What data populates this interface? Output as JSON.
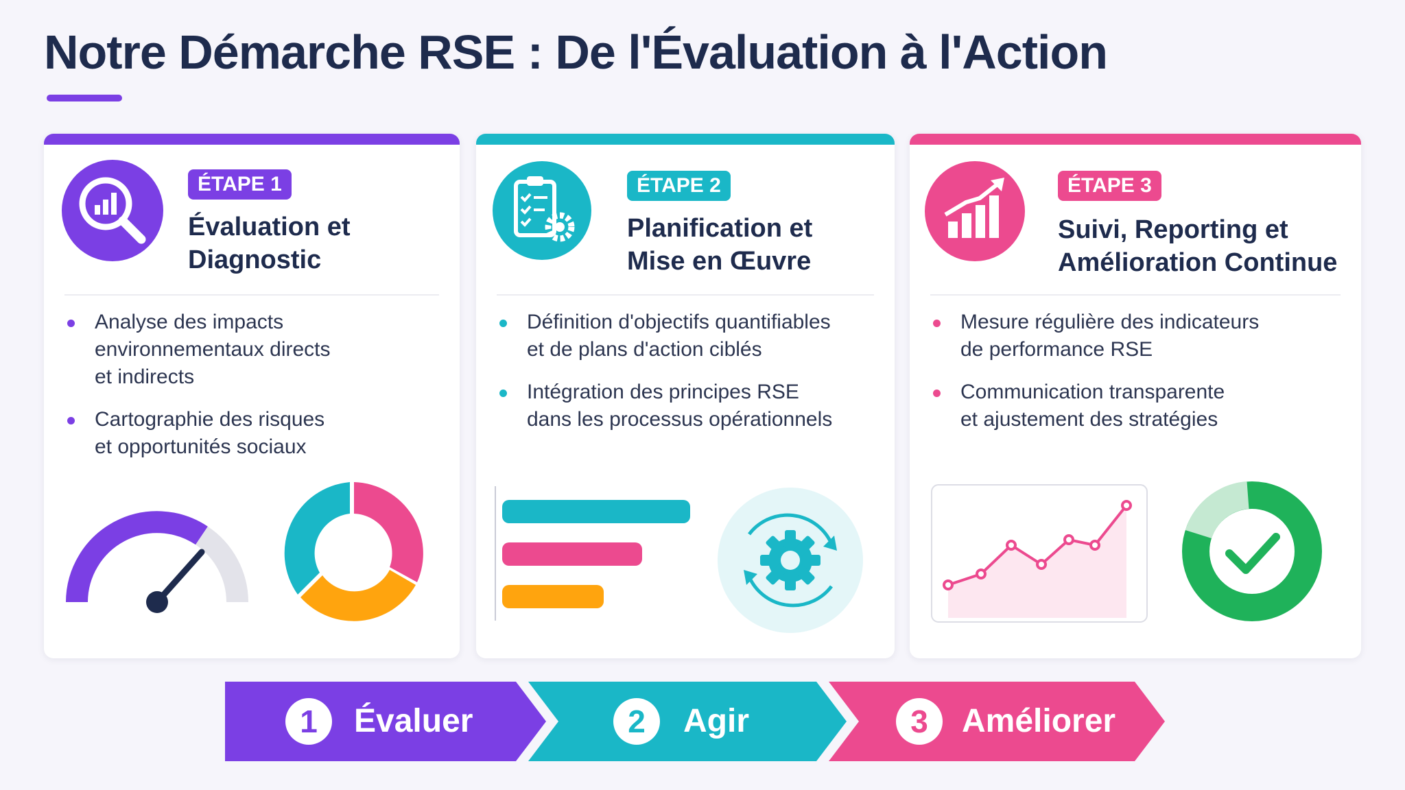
{
  "title": "Notre Démarche RSE : De l'Évaluation à l'Action",
  "colors": {
    "purple": "#7b3fe4",
    "teal": "#1ab7c7",
    "pink": "#ec4a8f",
    "orange": "#ffa40e",
    "green": "#1fb25a",
    "navy": "#1e2b4d"
  },
  "cards": [
    {
      "badge": "ÉTAPE 1",
      "heading_line1": "Évaluation et",
      "heading_line2": "Diagnostic",
      "icon": "magnifier-chart-icon",
      "bullets": [
        "Analyse des impacts\nenvironnementaux directs\net indirects",
        "Cartographie des risques\net opportunités sociaux"
      ],
      "visuals": [
        "gauge-icon",
        "donut-chart-icon"
      ]
    },
    {
      "badge": "ÉTAPE 2",
      "heading_line1": "Planification et",
      "heading_line2": "Mise en Œuvre",
      "icon": "clipboard-gear-icon",
      "bullets": [
        "Définition d'objectifs quantifiables\net de plans d'action ciblés",
        "Intégration des principes RSE\ndans les processus opérationnels"
      ],
      "visuals": [
        "bar-chart-icon",
        "gear-cycle-icon"
      ]
    },
    {
      "badge": "ÉTAPE 3",
      "heading_line1": "Suivi, Reporting et",
      "heading_line2": "Amélioration Continue",
      "icon": "growth-chart-icon",
      "bullets": [
        "Mesure régulière des indicateurs\nde performance RSE",
        "Communication transparente\net ajustement des stratégies"
      ],
      "visuals": [
        "line-chart-icon",
        "check-donut-icon"
      ]
    }
  ],
  "flow": [
    {
      "num": "1",
      "label": "Évaluer"
    },
    {
      "num": "2",
      "label": "Agir"
    },
    {
      "num": "3",
      "label": "Améliorer"
    }
  ]
}
